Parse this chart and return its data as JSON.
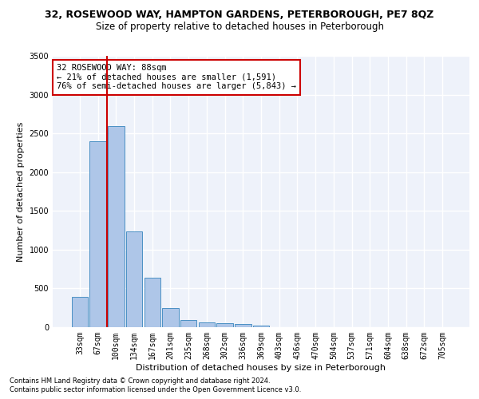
{
  "title1": "32, ROSEWOOD WAY, HAMPTON GARDENS, PETERBOROUGH, PE7 8QZ",
  "title2": "Size of property relative to detached houses in Peterborough",
  "xlabel": "Distribution of detached houses by size in Peterborough",
  "ylabel": "Number of detached properties",
  "footnote1": "Contains HM Land Registry data © Crown copyright and database right 2024.",
  "footnote2": "Contains public sector information licensed under the Open Government Licence v3.0.",
  "bar_labels": [
    "33sqm",
    "67sqm",
    "100sqm",
    "134sqm",
    "167sqm",
    "201sqm",
    "235sqm",
    "268sqm",
    "302sqm",
    "336sqm",
    "369sqm",
    "403sqm",
    "436sqm",
    "470sqm",
    "504sqm",
    "537sqm",
    "571sqm",
    "604sqm",
    "638sqm",
    "672sqm",
    "705sqm"
  ],
  "bar_values": [
    390,
    2400,
    2590,
    1240,
    640,
    250,
    95,
    60,
    55,
    40,
    25,
    0,
    0,
    0,
    0,
    0,
    0,
    0,
    0,
    0,
    0
  ],
  "bar_color": "#aec6e8",
  "bar_edge_color": "#4a90c4",
  "annotation_text": "32 ROSEWOOD WAY: 88sqm\n← 21% of detached houses are smaller (1,591)\n76% of semi-detached houses are larger (5,843) →",
  "vline_x": 1.5,
  "vline_color": "#cc0000",
  "annotation_box_color": "#cc0000",
  "ylim": [
    0,
    3500
  ],
  "yticks": [
    0,
    500,
    1000,
    1500,
    2000,
    2500,
    3000,
    3500
  ],
  "background_color": "#eef2fa",
  "grid_color": "#ffffff",
  "title1_fontsize": 9,
  "title2_fontsize": 8.5,
  "axis_label_fontsize": 8,
  "tick_fontsize": 7,
  "annotation_fontsize": 7.5,
  "footnote_fontsize": 6
}
